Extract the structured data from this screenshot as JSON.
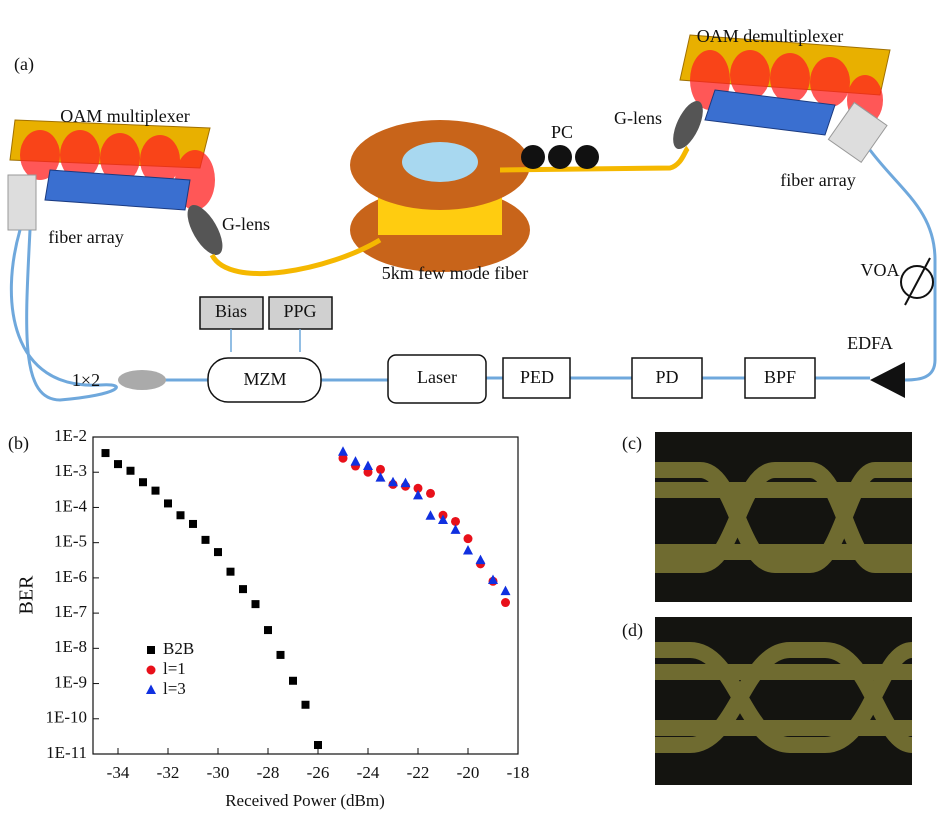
{
  "panels": {
    "a": "(a)",
    "b": "(b)",
    "c": "(c)",
    "d": "(d)"
  },
  "diagram": {
    "nodes": [
      {
        "label": "OAM multiplexer"
      },
      {
        "label": "OAM demultiplexer"
      },
      {
        "label": "G-lens"
      },
      {
        "label": "G-lens"
      },
      {
        "label": "PC"
      },
      {
        "label": "fiber array"
      },
      {
        "label": "fiber array"
      },
      {
        "label": "5km few mode fiber"
      },
      {
        "label": "VOA"
      },
      {
        "label": "EDFA"
      },
      {
        "label": "Bias"
      },
      {
        "label": "PPG"
      },
      {
        "label": "MZM"
      },
      {
        "label": "1×2"
      },
      {
        "label": "Laser"
      },
      {
        "label": "PED"
      },
      {
        "label": "PD"
      },
      {
        "label": "BPF"
      }
    ]
  },
  "chart_data": {
    "type": "scatter",
    "x_label": "Received Power (dBm)",
    "y_label": "BER",
    "log_y": true,
    "legend": "lower left",
    "xlim": [
      -35,
      -18
    ],
    "xticks": [
      -34,
      -32,
      -30,
      -28,
      -26,
      -24,
      -22,
      -20,
      -18
    ],
    "ylim": [
      1e-11,
      0.01
    ],
    "yticks": [
      {
        "value": 0.01,
        "label": "1E-2"
      },
      {
        "value": 0.001,
        "label": "1E-3"
      },
      {
        "value": 0.0001,
        "label": "1E-4"
      },
      {
        "value": 1e-05,
        "label": "1E-5"
      },
      {
        "value": 1e-06,
        "label": "1E-6"
      },
      {
        "value": 1e-07,
        "label": "1E-7"
      },
      {
        "value": 1e-08,
        "label": "1E-8"
      },
      {
        "value": 1e-09,
        "label": "1E-9"
      },
      {
        "value": 1e-10,
        "label": "1E-10"
      },
      {
        "value": 1e-11,
        "label": "1E-11"
      }
    ],
    "series": [
      {
        "name": "B2B",
        "color": "#000000",
        "marker": "square",
        "x": [
          -34.5,
          -34,
          -33.5,
          -33,
          -32.5,
          -32,
          -31.5,
          -31,
          -30.5,
          -30,
          -29.5,
          -29,
          -28.5,
          -28,
          -27.5,
          -27,
          -26.5,
          -26
        ],
        "values": [
          0.0035,
          0.0017,
          0.0011,
          0.00052,
          0.0003,
          0.00013,
          6e-05,
          3.4e-05,
          1.2e-05,
          5.4e-06,
          1.5e-06,
          4.8e-07,
          1.8e-07,
          3.3e-08,
          6.5e-09,
          1.2e-09,
          2.5e-10,
          1.8e-11
        ]
      },
      {
        "name": "l=1",
        "color": "#e8101a",
        "marker": "circle",
        "x": [
          -25,
          -24.5,
          -24,
          -23.5,
          -23,
          -22.5,
          -22,
          -21.5,
          -21,
          -20.5,
          -20,
          -19.5,
          -19,
          -18.5
        ],
        "values": [
          0.0025,
          0.0015,
          0.001,
          0.0012,
          0.00045,
          0.0004,
          0.00035,
          0.00025,
          6e-05,
          4e-05,
          1.3e-05,
          2.5e-06,
          8e-07,
          2e-07
        ]
      },
      {
        "name": "l=3",
        "color": "#1030e0",
        "marker": "triangle",
        "x": [
          -25,
          -24.5,
          -24,
          -23.5,
          -23,
          -22.5,
          -22,
          -21.5,
          -21,
          -20.5,
          -20,
          -19.5,
          -19,
          -18.5
        ],
        "values": [
          0.0038,
          0.002,
          0.0015,
          0.0007,
          0.00052,
          0.00049,
          0.00022,
          5.8e-05,
          4.4e-05,
          2.3e-05,
          6e-06,
          3.2e-06,
          8.7e-07,
          4.2e-07
        ]
      }
    ]
  }
}
